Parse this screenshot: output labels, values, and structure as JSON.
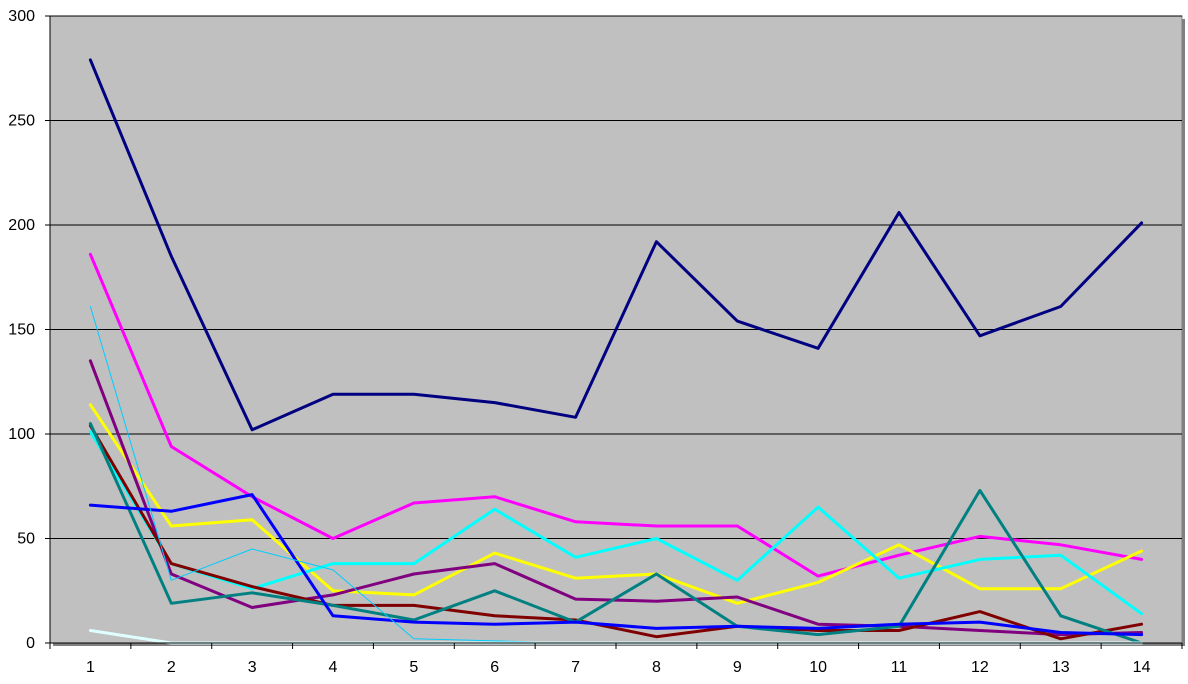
{
  "chart_data": {
    "type": "line",
    "title": "",
    "xlabel": "",
    "ylabel": "",
    "x": [
      1,
      2,
      3,
      4,
      5,
      6,
      7,
      8,
      9,
      10,
      11,
      12,
      13,
      14
    ],
    "x_tick_labels": [
      "1",
      "2",
      "3",
      "4",
      "5",
      "6",
      "7",
      "8",
      "9",
      "10",
      "11",
      "12",
      "13",
      "14"
    ],
    "ylim": [
      0,
      300
    ],
    "y_tick_labels": [
      "0",
      "50",
      "100",
      "150",
      "200",
      "250",
      "300"
    ],
    "grid": "horizontal",
    "legend": "none",
    "plot_background": "#c0c0c0",
    "series": [
      {
        "color": "#000080",
        "width": "thick",
        "values": [
          279,
          185,
          102,
          119,
          119,
          115,
          108,
          192,
          154,
          141,
          206,
          147,
          161,
          201
        ]
      },
      {
        "color": "#ff00ff",
        "width": "thick",
        "values": [
          186,
          94,
          70,
          50,
          67,
          70,
          58,
          56,
          56,
          32,
          42,
          51,
          47,
          40
        ]
      },
      {
        "color": "#ffff00",
        "width": "thick",
        "values": [
          114,
          56,
          59,
          25,
          23,
          43,
          31,
          33,
          19,
          29,
          47,
          26,
          26,
          44
        ]
      },
      {
        "color": "#00ffff",
        "width": "thick",
        "values": [
          101,
          38,
          26,
          38,
          38,
          64,
          41,
          50,
          30,
          65,
          31,
          40,
          42,
          14
        ]
      },
      {
        "color": "#800080",
        "width": "thick",
        "values": [
          135,
          33,
          17,
          23,
          33,
          38,
          21,
          20,
          22,
          9,
          8,
          6,
          4,
          5
        ]
      },
      {
        "color": "#800000",
        "width": "thick",
        "values": [
          104,
          38,
          27,
          18,
          18,
          13,
          11,
          3,
          8,
          6,
          6,
          15,
          2,
          9
        ]
      },
      {
        "color": "#008080",
        "width": "thick",
        "values": [
          105,
          19,
          24,
          18,
          11,
          25,
          10,
          33,
          8,
          4,
          8,
          73,
          13,
          0
        ]
      },
      {
        "color": "#0000ff",
        "width": "thick",
        "values": [
          66,
          63,
          71,
          13,
          10,
          9,
          10,
          7,
          8,
          7,
          9,
          10,
          5,
          4
        ]
      },
      {
        "color": "#00ccff",
        "width": "thin",
        "values": [
          161,
          30,
          45,
          35,
          2,
          1,
          0,
          0,
          0,
          0,
          0,
          0,
          0,
          0
        ]
      },
      {
        "color": "#e0ffff",
        "width": "thick",
        "values": [
          6,
          0,
          0,
          0,
          0,
          0,
          0,
          0,
          0,
          0,
          0,
          0,
          0,
          0
        ]
      }
    ]
  }
}
